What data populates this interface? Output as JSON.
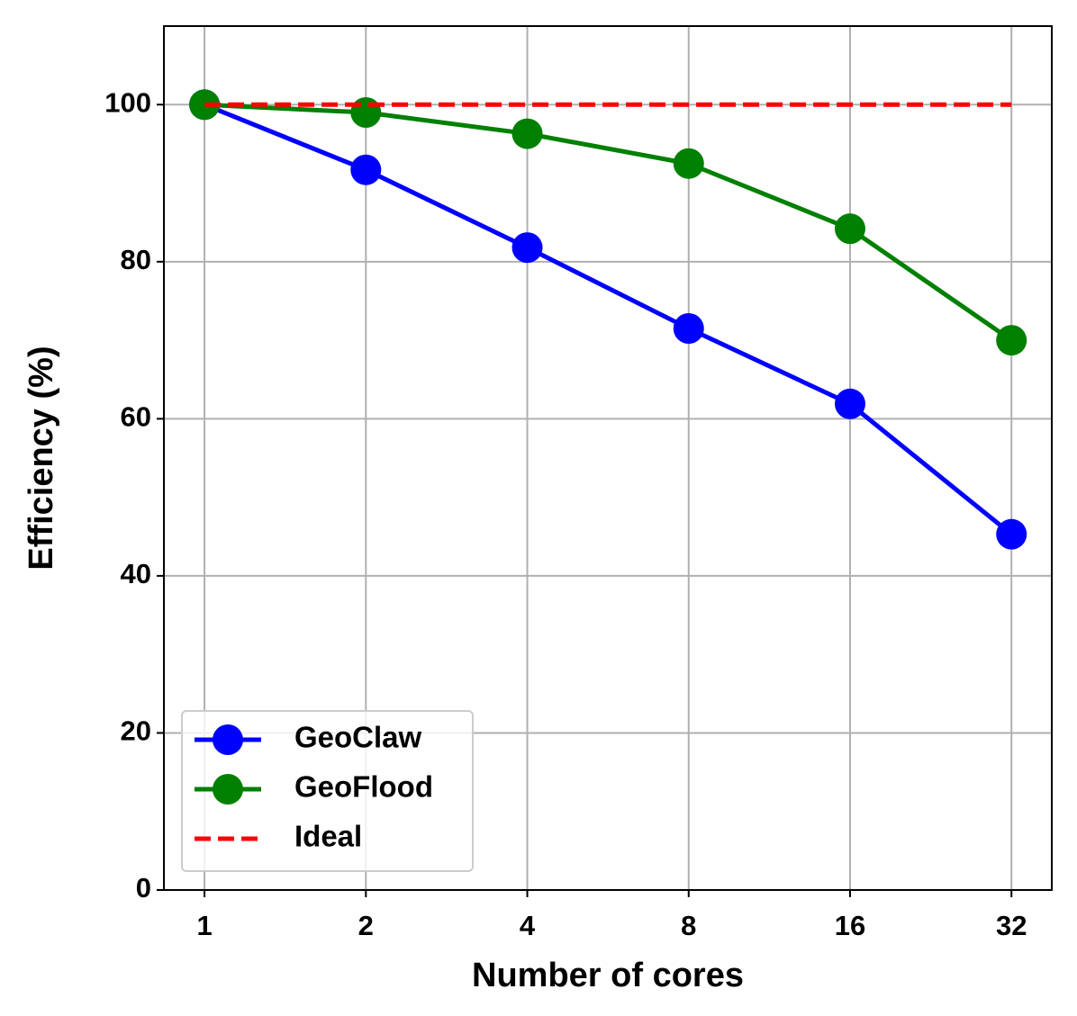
{
  "chart_data": {
    "type": "line",
    "xlabel": "Number of cores",
    "ylabel": "Efficiency (%)",
    "x": [
      1,
      2,
      4,
      8,
      16,
      32
    ],
    "xscale": "log2",
    "xlim": [
      0.84,
      38.05
    ],
    "xticks": [
      1,
      2,
      4,
      8,
      16,
      32
    ],
    "ylim": [
      0,
      110
    ],
    "yticks": [
      0,
      20,
      40,
      60,
      80,
      100
    ],
    "grid": true,
    "legend": "lower left",
    "series": [
      {
        "name": "GeoClaw",
        "color": "#0000ff",
        "style": "solid",
        "marker": true,
        "values": [
          100,
          91.7,
          81.8,
          71.5,
          61.9,
          45.3
        ]
      },
      {
        "name": "GeoFlood",
        "color": "#008000",
        "style": "solid",
        "marker": true,
        "values": [
          100,
          99,
          96.3,
          92.5,
          84.2,
          70
        ]
      },
      {
        "name": "Ideal",
        "color": "#ff0000",
        "style": "dashed",
        "marker": false,
        "values": [
          100,
          100,
          100,
          100,
          100,
          100
        ]
      }
    ]
  }
}
